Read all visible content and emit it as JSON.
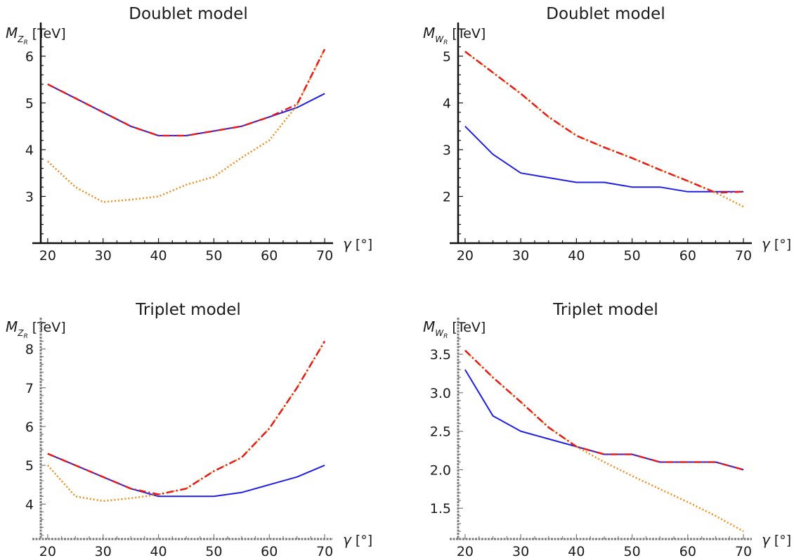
{
  "chart_data": [
    {
      "type": "line",
      "title": "Doublet model",
      "ylabel": {
        "symbol": "M",
        "subscript": "Z",
        "subsub": "R",
        "unit": "[TeV]"
      },
      "xlabel": {
        "symbol": "γ",
        "unit": "[°]"
      },
      "xlim": [
        19,
        71
      ],
      "ylim": [
        2.0,
        6.3
      ],
      "xticks": [
        20,
        30,
        40,
        50,
        60,
        70
      ],
      "yticks": [
        3,
        4,
        5,
        6
      ],
      "axis_style": "solid",
      "x": [
        20,
        25,
        30,
        35,
        40,
        45,
        50,
        55,
        60,
        65,
        70
      ],
      "series": [
        {
          "style": "blue-solid",
          "color": "#1f1fe6",
          "values": [
            5.4,
            5.1,
            4.8,
            4.5,
            4.3,
            4.3,
            4.4,
            4.5,
            4.7,
            4.9,
            5.2
          ]
        },
        {
          "style": "orange-dotted",
          "color": "#f08c1a",
          "values": [
            3.75,
            3.2,
            2.88,
            2.93,
            3.0,
            3.25,
            3.42,
            3.83,
            4.2,
            4.95,
            6.15
          ]
        },
        {
          "style": "red-dashdot",
          "color": "#e61a1a",
          "values": [
            5.4,
            5.1,
            4.8,
            4.5,
            4.3,
            4.3,
            4.4,
            4.5,
            4.7,
            4.97,
            6.15
          ]
        }
      ]
    },
    {
      "type": "line",
      "title": "Doublet model",
      "ylabel": {
        "symbol": "M",
        "subscript": "W",
        "subsub": "R",
        "unit": "[TeV]"
      },
      "xlabel": {
        "symbol": "γ",
        "unit": "[°]"
      },
      "xlim": [
        19,
        71
      ],
      "ylim": [
        1.0,
        5.3
      ],
      "xticks": [
        20,
        30,
        40,
        50,
        60,
        70
      ],
      "yticks": [
        2,
        3,
        4,
        5
      ],
      "axis_style": "solid",
      "x": [
        20,
        25,
        30,
        35,
        40,
        45,
        50,
        55,
        60,
        65,
        70
      ],
      "series": [
        {
          "style": "blue-solid",
          "color": "#1f1fe6",
          "values": [
            3.5,
            2.9,
            2.5,
            2.4,
            2.3,
            2.3,
            2.2,
            2.2,
            2.1,
            2.1,
            2.1
          ]
        },
        {
          "style": "orange-dotted",
          "color": "#f08c1a",
          "values": [
            5.1,
            4.65,
            4.2,
            3.7,
            3.3,
            3.05,
            2.82,
            2.57,
            2.33,
            2.08,
            1.78
          ]
        },
        {
          "style": "red-dashdot",
          "color": "#e61a1a",
          "values": [
            5.1,
            4.65,
            4.2,
            3.7,
            3.3,
            3.05,
            2.82,
            2.57,
            2.33,
            2.08,
            2.1
          ]
        }
      ]
    },
    {
      "type": "line",
      "title": "Triplet model",
      "ylabel": {
        "symbol": "M",
        "subscript": "Z",
        "subsub": "R",
        "unit": "[TeV]"
      },
      "xlabel": {
        "symbol": "γ",
        "unit": "[°]"
      },
      "xlim": [
        19,
        71
      ],
      "ylim": [
        3.1,
        8.3
      ],
      "xticks": [
        20,
        30,
        40,
        50,
        60,
        70
      ],
      "yticks": [
        4,
        5,
        6,
        7,
        8
      ],
      "axis_style": "dashed",
      "x": [
        20,
        25,
        30,
        35,
        40,
        45,
        50,
        55,
        60,
        65,
        70
      ],
      "series": [
        {
          "style": "blue-solid",
          "color": "#1f1fe6",
          "values": [
            5.3,
            5.0,
            4.7,
            4.4,
            4.2,
            4.2,
            4.2,
            4.3,
            4.5,
            4.7,
            5.0
          ]
        },
        {
          "style": "orange-dotted",
          "color": "#f08c1a",
          "values": [
            5.0,
            4.2,
            4.08,
            4.15,
            4.25,
            4.4,
            4.85,
            5.2,
            5.95,
            7.0,
            8.2
          ]
        },
        {
          "style": "red-dashdot",
          "color": "#e61a1a",
          "values": [
            5.3,
            5.0,
            4.7,
            4.4,
            4.25,
            4.4,
            4.85,
            5.2,
            5.95,
            7.0,
            8.2
          ]
        }
      ]
    },
    {
      "type": "line",
      "title": "Triplet model",
      "ylabel": {
        "symbol": "M",
        "subscript": "W",
        "subsub": "R",
        "unit": "[TeV]"
      },
      "xlabel": {
        "symbol": "γ",
        "unit": "[°]"
      },
      "xlim": [
        19,
        71
      ],
      "ylim": [
        1.1,
        3.72
      ],
      "xticks": [
        20,
        30,
        40,
        50,
        60,
        70
      ],
      "yticks": [
        1.5,
        2.0,
        2.5,
        3.0,
        3.5
      ],
      "ytick_labels": [
        "1.5",
        "2.0",
        "2.5",
        "3.0",
        "3.5"
      ],
      "axis_style": "dashed",
      "x": [
        20,
        25,
        30,
        35,
        40,
        45,
        50,
        55,
        60,
        65,
        70
      ],
      "series": [
        {
          "style": "blue-solid",
          "color": "#1f1fe6",
          "values": [
            3.3,
            2.7,
            2.5,
            2.4,
            2.3,
            2.2,
            2.2,
            2.1,
            2.1,
            2.1,
            2.0
          ]
        },
        {
          "style": "orange-dotted",
          "color": "#f08c1a",
          "values": [
            3.55,
            3.2,
            2.88,
            2.55,
            2.3,
            2.1,
            1.92,
            1.75,
            1.58,
            1.4,
            1.2
          ]
        },
        {
          "style": "red-dashdot",
          "color": "#e61a1a",
          "values": [
            3.55,
            3.2,
            2.88,
            2.55,
            2.3,
            2.2,
            2.2,
            2.1,
            2.1,
            2.1,
            2.0
          ]
        }
      ]
    }
  ]
}
